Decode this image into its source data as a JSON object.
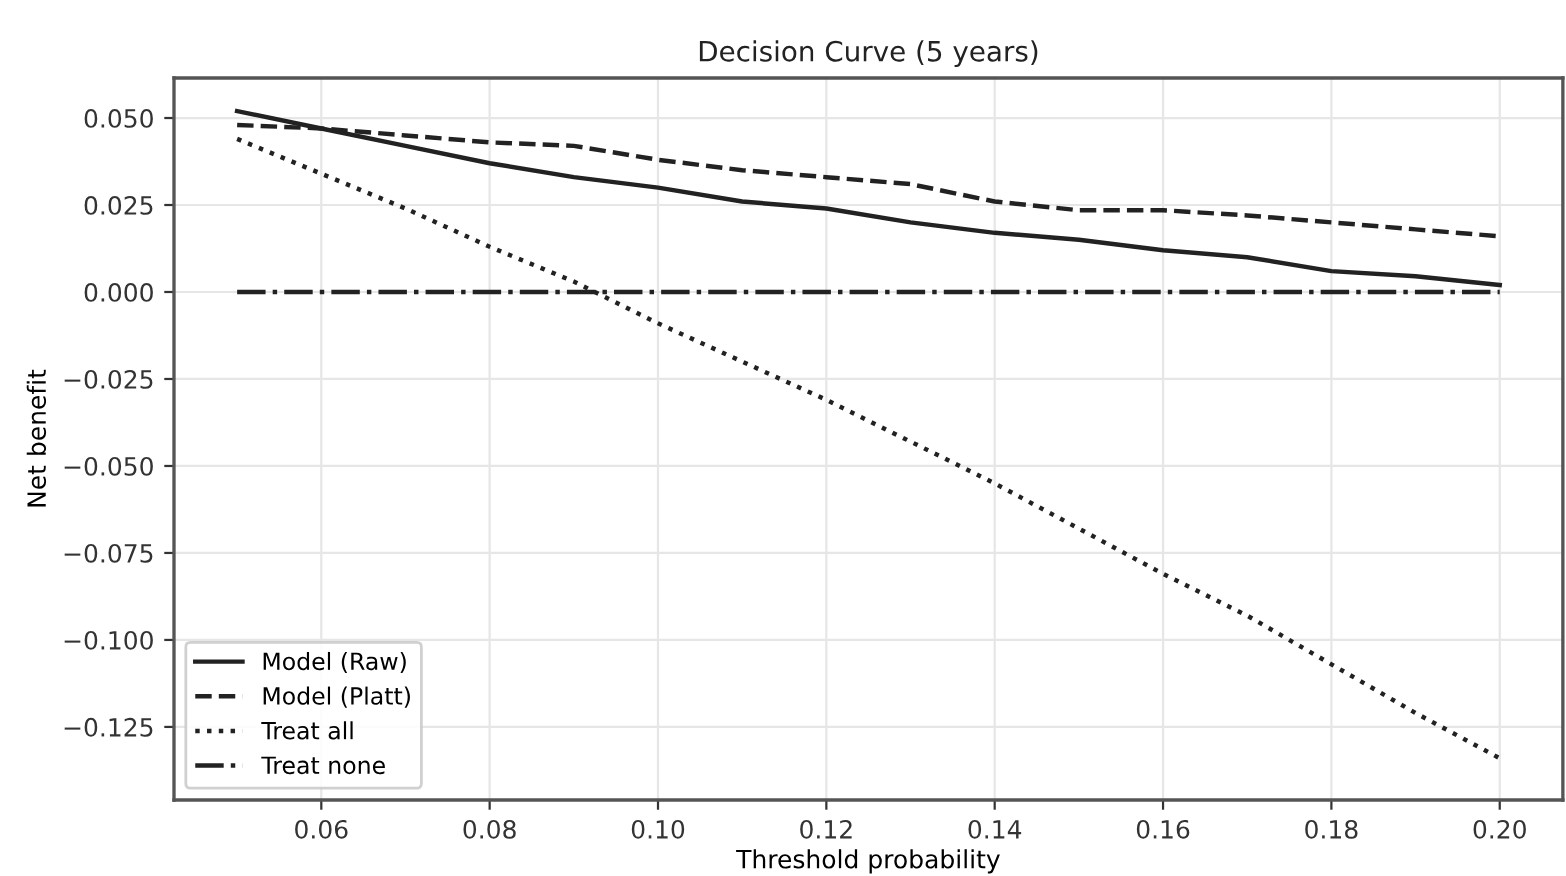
{
  "chart_data": {
    "type": "line",
    "title": "Decision Curve (5 years)",
    "xlabel": "Threshold probability",
    "ylabel": "Net benefit",
    "x": [
      0.05,
      0.06,
      0.07,
      0.08,
      0.09,
      0.1,
      0.11,
      0.12,
      0.13,
      0.14,
      0.15,
      0.16,
      0.17,
      0.18,
      0.19,
      0.2
    ],
    "series": [
      {
        "name": "Model (Raw)",
        "color": "#222222",
        "line_style": "solid",
        "values": [
          0.052,
          0.047,
          0.042,
          0.037,
          0.033,
          0.03,
          0.026,
          0.024,
          0.02,
          0.017,
          0.015,
          0.012,
          0.01,
          0.006,
          0.0045,
          0.002
        ]
      },
      {
        "name": "Model (Platt)",
        "color": "#222222",
        "line_style": "dashed",
        "values": [
          0.048,
          0.047,
          0.045,
          0.043,
          0.042,
          0.038,
          0.035,
          0.033,
          0.031,
          0.026,
          0.0235,
          0.0235,
          0.022,
          0.02,
          0.018,
          0.016
        ]
      },
      {
        "name": "Treat all",
        "color": "#222222",
        "line_style": "dotted",
        "values": [
          0.044,
          0.034,
          0.024,
          0.013,
          0.003,
          -0.009,
          -0.02,
          -0.031,
          -0.043,
          -0.055,
          -0.068,
          -0.081,
          -0.093,
          -0.107,
          -0.121,
          -0.134
        ]
      },
      {
        "name": "Treat none",
        "color": "#222222",
        "line_style": "dashdot",
        "values": [
          0,
          0,
          0,
          0,
          0,
          0,
          0,
          0,
          0,
          0,
          0,
          0,
          0,
          0,
          0,
          0
        ]
      }
    ],
    "xlim": [
      0.0425,
      0.2075
    ],
    "ylim": [
      -0.146,
      0.0615
    ],
    "xticks": [
      {
        "value": 0.06,
        "label": "0.06"
      },
      {
        "value": 0.08,
        "label": "0.08"
      },
      {
        "value": 0.1,
        "label": "0.10"
      },
      {
        "value": 0.12,
        "label": "0.12"
      },
      {
        "value": 0.14,
        "label": "0.14"
      },
      {
        "value": 0.16,
        "label": "0.16"
      },
      {
        "value": 0.18,
        "label": "0.18"
      },
      {
        "value": 0.2,
        "label": "0.20"
      }
    ],
    "yticks": [
      {
        "value": -0.125,
        "label": "−0.125"
      },
      {
        "value": -0.1,
        "label": "−0.100"
      },
      {
        "value": -0.075,
        "label": "−0.075"
      },
      {
        "value": -0.05,
        "label": "−0.050"
      },
      {
        "value": -0.025,
        "label": "−0.025"
      },
      {
        "value": 0,
        "label": "0.000"
      },
      {
        "value": 0.025,
        "label": "0.025"
      },
      {
        "value": 0.05,
        "label": "0.050"
      }
    ],
    "grid": true,
    "legend": "lower left",
    "marker": "none"
  }
}
